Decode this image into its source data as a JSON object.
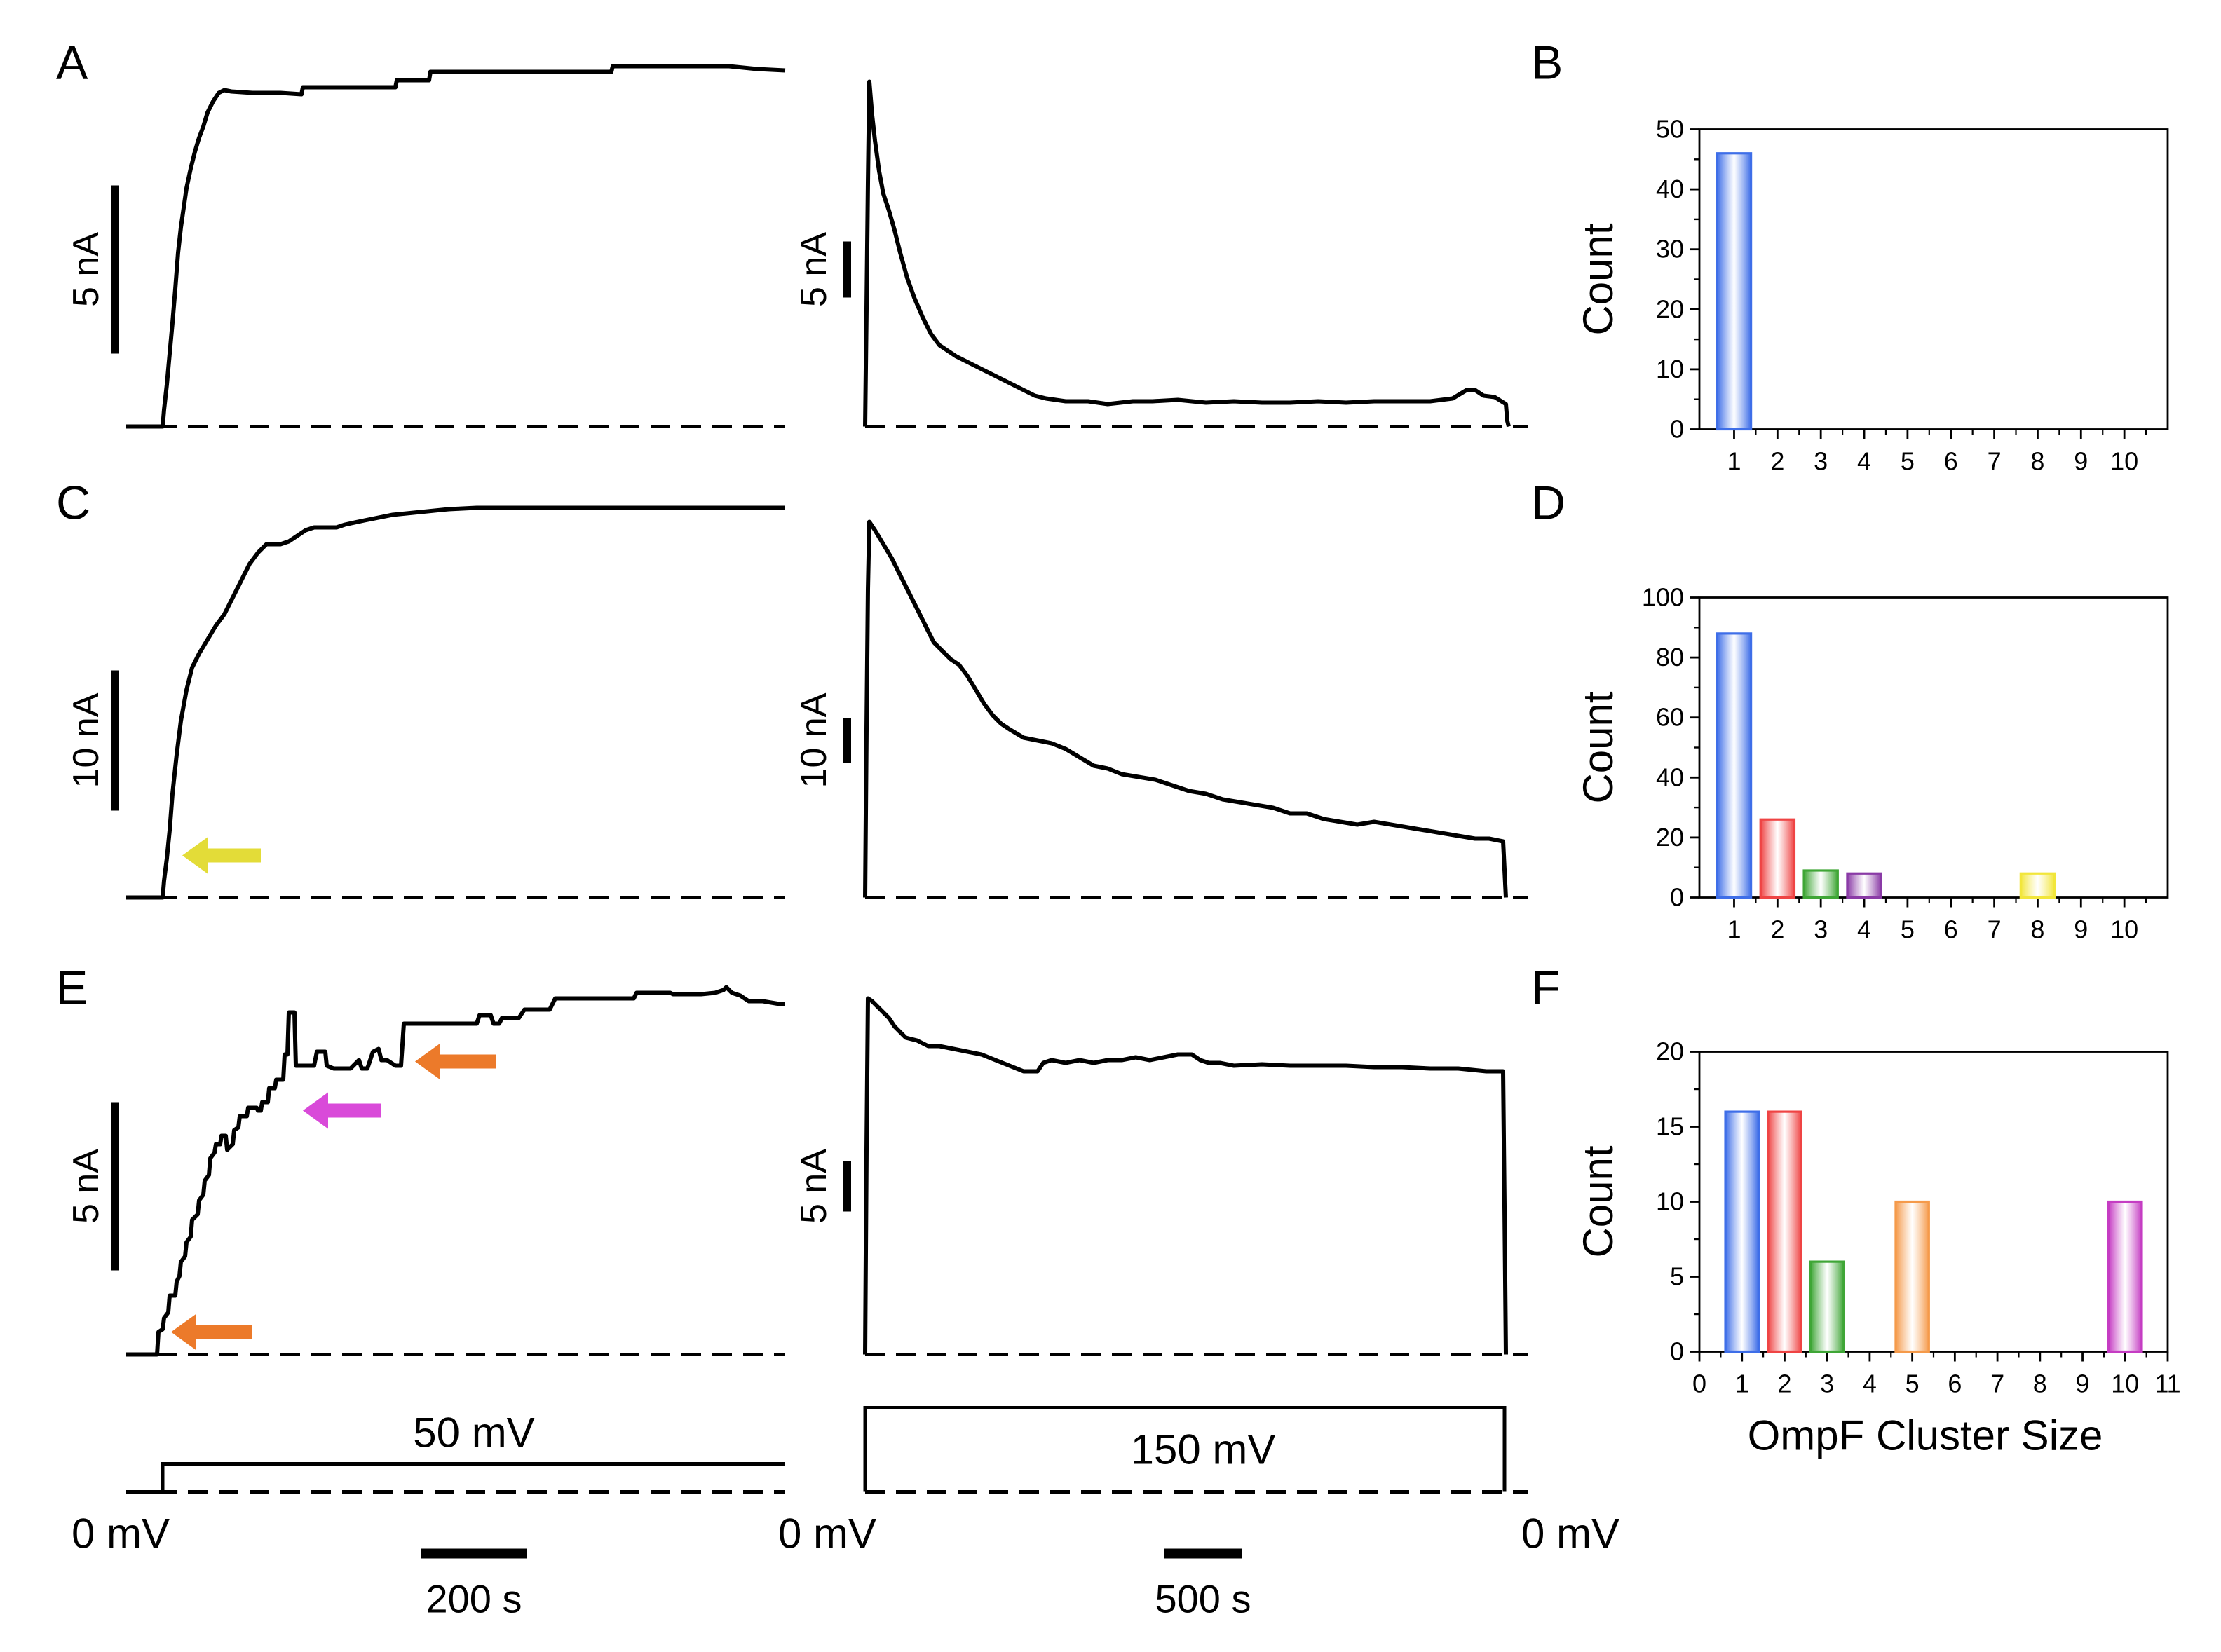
{
  "panel_labels": {
    "A": "A",
    "B": "B",
    "C": "C",
    "D": "D",
    "E": "E",
    "F": "F"
  },
  "colors": {
    "ink": "#000000",
    "baseline_dash": "#000000",
    "arrow_yellow": "#e3dc38",
    "arrow_orange": "#ec7a2a",
    "arrow_magenta": "#d94ad9",
    "bar_palette": [
      "#3e6ee8",
      "#ef4444",
      "#3fa636",
      "#8a3aa6",
      "#f59a4a",
      "#7f7f7f",
      "#7f7f7f",
      "#f2e63a",
      "#7f7f7f",
      "#c53cc3"
    ]
  },
  "traces": {
    "row_A": {
      "left_scale_label": "5 nA",
      "right_scale_label": "5 nA"
    },
    "row_C": {
      "left_scale_label": "10 nA",
      "right_scale_label": "10 nA",
      "arrows": [
        "yellow"
      ]
    },
    "row_E": {
      "left_scale_label": "5 nA",
      "right_scale_label": "5 nA",
      "arrows": [
        "orange",
        "magenta",
        "orange"
      ]
    }
  },
  "voltage_protocol": {
    "left_step_label": "50 mV",
    "right_step_label": "150 mV",
    "zero_labels": [
      "0 mV",
      "0 mV",
      "0 mV"
    ],
    "left_time_scale": "200 s",
    "right_time_scale": "500 s"
  },
  "chart_data": [
    {
      "type": "bar",
      "panel": "B",
      "ylabel": "Count",
      "xlabel": "",
      "categories": [
        1,
        2,
        3,
        4,
        5,
        6,
        7,
        8,
        9,
        10
      ],
      "values": [
        46,
        0,
        0,
        0,
        0,
        0,
        0,
        0,
        0,
        0
      ],
      "ylim": [
        0,
        50
      ],
      "yticks": [
        0,
        10,
        20,
        30,
        40,
        50
      ],
      "xlim": [
        0.2,
        11
      ],
      "xticks": [
        1,
        2,
        3,
        4,
        5,
        6,
        7,
        8,
        9,
        10
      ]
    },
    {
      "type": "bar",
      "panel": "D",
      "ylabel": "Count",
      "xlabel": "",
      "categories": [
        1,
        2,
        3,
        4,
        5,
        6,
        7,
        8,
        9,
        10
      ],
      "values": [
        88,
        26,
        9,
        8,
        0,
        0,
        0,
        8,
        0,
        0
      ],
      "ylim": [
        0,
        100
      ],
      "yticks": [
        0,
        20,
        40,
        60,
        80,
        100
      ],
      "xlim": [
        0.2,
        11
      ],
      "xticks": [
        1,
        2,
        3,
        4,
        5,
        6,
        7,
        8,
        9,
        10
      ]
    },
    {
      "type": "bar",
      "panel": "F",
      "ylabel": "Count",
      "xlabel": "OmpF Cluster Size",
      "categories": [
        1,
        2,
        3,
        4,
        5,
        6,
        7,
        8,
        9,
        10
      ],
      "values": [
        16,
        16,
        6,
        0,
        10,
        0,
        0,
        0,
        0,
        10
      ],
      "ylim": [
        0,
        20
      ],
      "yticks": [
        0,
        5,
        10,
        15,
        20
      ],
      "xlim": [
        0,
        11
      ],
      "xticks": [
        0,
        1,
        2,
        3,
        4,
        5,
        6,
        7,
        8,
        9,
        10,
        11
      ]
    }
  ]
}
